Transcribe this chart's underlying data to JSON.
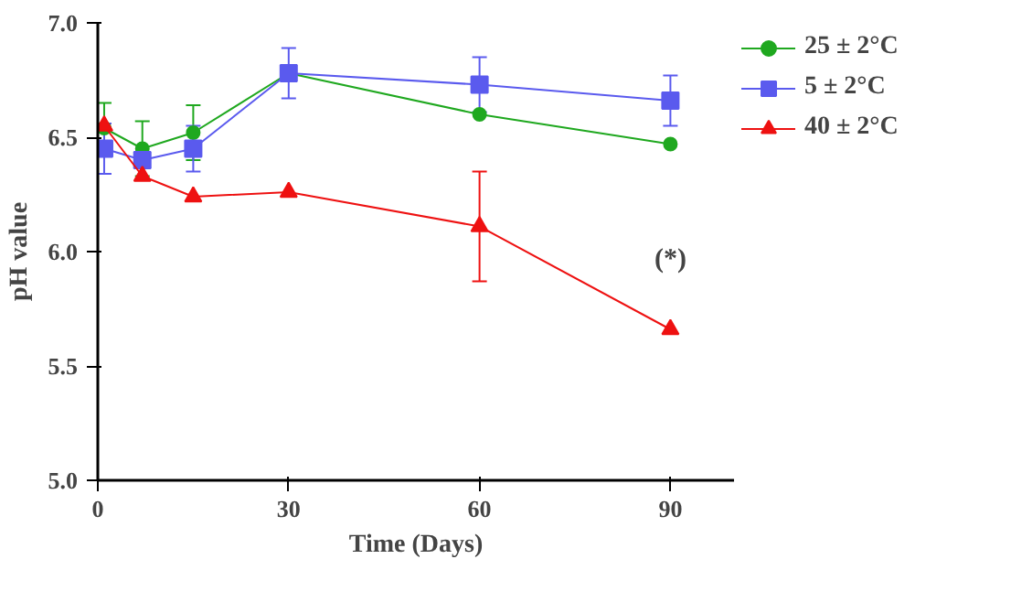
{
  "chart_data": {
    "type": "line",
    "xlabel": "Time (Days)",
    "ylabel": "pH value",
    "x": [
      1,
      7,
      15,
      30,
      60,
      90
    ],
    "xlim": [
      0,
      100
    ],
    "xticks": [
      0,
      30,
      60,
      90
    ],
    "ylim": [
      5.0,
      7.0
    ],
    "yticks": [
      {
        "value": 5.0,
        "label": "5.0"
      },
      {
        "value": 5.5,
        "label": "5.5"
      },
      {
        "value": 6.0,
        "label": "6.0"
      },
      {
        "value": 6.5,
        "label": "6.5"
      },
      {
        "value": 7.0,
        "label": "7.0"
      }
    ],
    "series": [
      {
        "name": "25 ± 2°C",
        "color": "#1fa81f",
        "marker": "circle",
        "values": [
          6.54,
          6.45,
          6.52,
          6.78,
          6.6,
          6.47
        ],
        "errors": [
          0.11,
          0.12,
          0.12,
          null,
          null,
          null
        ]
      },
      {
        "name": "5 ± 2°C",
        "color": "#5a5aee",
        "marker": "square",
        "values": [
          6.45,
          6.4,
          6.45,
          6.78,
          6.73,
          6.66
        ],
        "errors": [
          0.11,
          null,
          0.1,
          0.11,
          0.12,
          0.11
        ]
      },
      {
        "name": "40 ± 2°C",
        "color": "#ee1111",
        "marker": "triangle",
        "values": [
          6.55,
          6.33,
          6.24,
          6.26,
          6.11,
          5.66
        ],
        "errors": [
          null,
          null,
          null,
          null,
          0.24,
          null
        ]
      }
    ],
    "annotations": [
      {
        "text": "(*)",
        "x": 90,
        "y": 5.66
      }
    ],
    "grid": false,
    "legend": "top right"
  }
}
